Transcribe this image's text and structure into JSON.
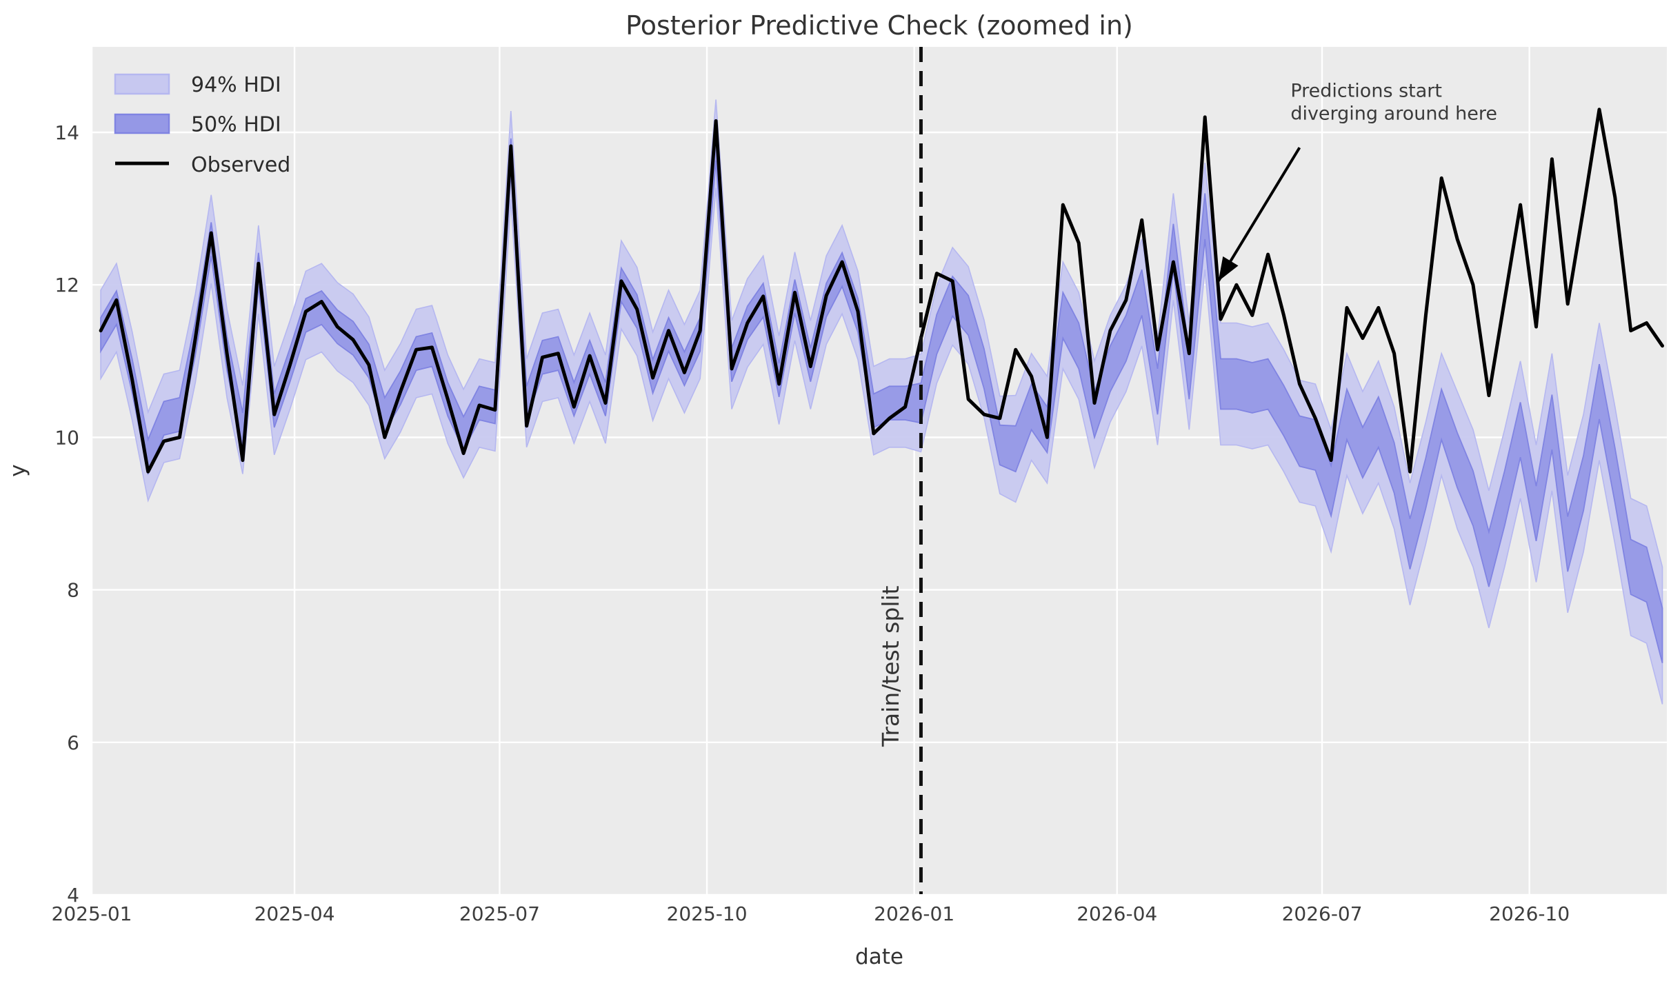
{
  "chart_data": {
    "type": "line",
    "title": "Posterior Predictive Check (zoomed in)",
    "xlabel": "date",
    "ylabel": "y",
    "grid": true,
    "legend_position": "upper left",
    "plot_bg": "#ebebeb",
    "figure_bg": "#ffffff",
    "colors": {
      "hdi94_fill": "#c7c8f0",
      "hdi94_edge": "#b5b7f0",
      "hdi50_fill": "#9598e6",
      "hdi50_edge": "#8084e2",
      "observed": "#000000",
      "split_line": "#111111",
      "grid_line": "#ffffff",
      "title_text": "#333333",
      "tick_text": "#3d3d3d",
      "annotation_text": "#3a3a3a"
    },
    "legend": [
      {
        "label": "94% HDI",
        "swatch": "patch-light"
      },
      {
        "label": "50% HDI",
        "swatch": "patch-dark"
      },
      {
        "label": "Observed",
        "swatch": "line-black"
      }
    ],
    "xlim": [
      "2025-01-01",
      "2026-12-01"
    ],
    "ylim": [
      4.0,
      15.15
    ],
    "x_ticks": [
      {
        "date": "2025-01-01",
        "label": "2025-01"
      },
      {
        "date": "2025-04-01",
        "label": "2025-04"
      },
      {
        "date": "2025-07-01",
        "label": "2025-07"
      },
      {
        "date": "2025-10-01",
        "label": "2025-10"
      },
      {
        "date": "2026-01-01",
        "label": "2026-01"
      },
      {
        "date": "2026-04-01",
        "label": "2026-04"
      },
      {
        "date": "2026-07-01",
        "label": "2026-07"
      },
      {
        "date": "2026-10-01",
        "label": "2026-10"
      }
    ],
    "y_ticks": [
      4,
      6,
      8,
      10,
      12,
      14
    ],
    "split": {
      "date": "2026-01-04",
      "label": "Train/test split",
      "label_pos": {
        "date": "2025-12-25",
        "value": 7.0
      }
    },
    "annotation": {
      "line1": "Predictions start",
      "line2": "diverging around here",
      "text_pos": {
        "date": "2026-06-17",
        "value": 14.7
      },
      "arrow_tail": {
        "date": "2026-06-21",
        "value": 13.8
      },
      "arrow_tip": {
        "date": "2026-05-16",
        "value": 12.05
      }
    },
    "dates": [
      "2025-01-05",
      "2025-01-12",
      "2025-01-19",
      "2025-01-26",
      "2025-02-02",
      "2025-02-09",
      "2025-02-16",
      "2025-02-23",
      "2025-03-02",
      "2025-03-09",
      "2025-03-16",
      "2025-03-23",
      "2025-03-30",
      "2025-04-06",
      "2025-04-13",
      "2025-04-20",
      "2025-04-27",
      "2025-05-04",
      "2025-05-11",
      "2025-05-18",
      "2025-05-25",
      "2025-06-01",
      "2025-06-08",
      "2025-06-15",
      "2025-06-22",
      "2025-06-29",
      "2025-07-06",
      "2025-07-13",
      "2025-07-20",
      "2025-07-27",
      "2025-08-03",
      "2025-08-10",
      "2025-08-17",
      "2025-08-24",
      "2025-08-31",
      "2025-09-07",
      "2025-09-14",
      "2025-09-21",
      "2025-09-28",
      "2025-10-05",
      "2025-10-12",
      "2025-10-19",
      "2025-10-26",
      "2025-11-02",
      "2025-11-09",
      "2025-11-16",
      "2025-11-23",
      "2025-11-30",
      "2025-12-07",
      "2025-12-14",
      "2025-12-21",
      "2025-12-28",
      "2026-01-04",
      "2026-01-11",
      "2026-01-18",
      "2026-01-25",
      "2026-02-01",
      "2026-02-08",
      "2026-02-15",
      "2026-02-22",
      "2026-03-01",
      "2026-03-08",
      "2026-03-15",
      "2026-03-22",
      "2026-03-29",
      "2026-04-05",
      "2026-04-12",
      "2026-04-19",
      "2026-04-26",
      "2026-05-03",
      "2026-05-10",
      "2026-05-17",
      "2026-05-24",
      "2026-05-31",
      "2026-06-07",
      "2026-06-14",
      "2026-06-21",
      "2026-06-28",
      "2026-07-05",
      "2026-07-12",
      "2026-07-19",
      "2026-07-26",
      "2026-08-02",
      "2026-08-09",
      "2026-08-16",
      "2026-08-23",
      "2026-08-30",
      "2026-09-06",
      "2026-09-13",
      "2026-09-20",
      "2026-09-27",
      "2026-10-04",
      "2026-10-11",
      "2026-10-18",
      "2026-10-25",
      "2026-11-01",
      "2026-11-08",
      "2026-11-15",
      "2026-11-22",
      "2026-11-29"
    ],
    "series": [
      {
        "name": "Observed",
        "values": [
          11.4,
          11.8,
          10.75,
          9.55,
          9.95,
          10.0,
          11.3,
          12.68,
          11.1,
          9.7,
          12.28,
          10.3,
          10.95,
          11.65,
          11.78,
          11.45,
          11.28,
          10.95,
          10.0,
          10.6,
          11.15,
          11.18,
          10.5,
          9.79,
          10.42,
          10.36,
          13.82,
          10.15,
          11.05,
          11.1,
          10.4,
          11.07,
          10.45,
          12.05,
          11.68,
          10.78,
          11.4,
          10.85,
          11.4,
          14.15,
          10.9,
          11.5,
          11.85,
          10.7,
          11.9,
          10.93,
          11.86,
          12.3,
          11.65,
          10.05,
          10.25,
          10.4,
          11.3,
          12.15,
          12.05,
          10.5,
          10.3,
          10.25,
          11.15,
          10.8,
          10.0,
          13.05,
          12.55,
          10.45,
          11.4,
          11.8,
          12.85,
          11.15,
          12.3,
          11.1,
          14.2,
          11.55,
          12.0,
          11.6,
          12.4,
          11.6,
          10.7,
          10.25,
          9.7,
          11.7,
          11.3,
          11.7,
          11.1,
          9.55,
          11.6,
          13.4,
          12.6,
          12.0,
          10.55,
          11.8,
          13.05,
          11.45,
          13.65,
          11.75,
          13.0,
          14.3,
          13.15,
          11.4,
          11.5,
          11.2
        ]
      },
      {
        "name": "50% HDI lower",
        "values": [
          11.13,
          11.48,
          10.58,
          9.53,
          10.03,
          10.08,
          11.08,
          12.38,
          10.88,
          9.88,
          11.98,
          10.13,
          10.73,
          11.38,
          11.48,
          11.23,
          11.08,
          10.78,
          10.08,
          10.43,
          10.88,
          10.93,
          10.28,
          9.83,
          10.23,
          10.18,
          13.48,
          10.23,
          10.83,
          10.88,
          10.28,
          10.83,
          10.28,
          11.78,
          11.43,
          10.58,
          11.13,
          10.68,
          11.13,
          13.63,
          10.73,
          11.28,
          11.58,
          10.53,
          11.63,
          10.73,
          11.58,
          11.98,
          11.38,
          10.13,
          10.23,
          10.23,
          10.19,
          11.09,
          11.59,
          11.34,
          10.64,
          9.64,
          9.55,
          10.1,
          9.8,
          11.3,
          10.9,
          10.0,
          10.6,
          11.0,
          11.6,
          10.3,
          12.2,
          10.5,
          12.6,
          10.37,
          10.37,
          10.32,
          10.37,
          10.02,
          9.62,
          9.57,
          8.97,
          9.97,
          9.47,
          9.87,
          9.27,
          8.27,
          9.07,
          9.97,
          9.34,
          8.84,
          8.04,
          8.84,
          9.74,
          8.64,
          9.84,
          8.24,
          9.04,
          10.24,
          9.14,
          7.94,
          7.84,
          7.04
        ]
      },
      {
        "name": "50% HDI upper",
        "values": [
          11.57,
          11.92,
          11.02,
          9.97,
          10.47,
          10.52,
          11.52,
          12.82,
          11.32,
          10.32,
          12.42,
          10.57,
          11.17,
          11.82,
          11.92,
          11.67,
          11.52,
          11.22,
          10.52,
          10.87,
          11.32,
          11.37,
          10.72,
          10.27,
          10.67,
          10.62,
          13.92,
          10.67,
          11.27,
          11.32,
          10.72,
          11.27,
          10.72,
          12.22,
          11.87,
          11.02,
          11.57,
          11.12,
          11.57,
          14.07,
          11.17,
          11.72,
          12.02,
          10.97,
          12.07,
          11.17,
          12.02,
          12.42,
          11.82,
          10.57,
          10.67,
          10.67,
          10.71,
          11.61,
          12.11,
          11.86,
          11.16,
          10.16,
          10.15,
          10.7,
          10.4,
          11.9,
          11.5,
          10.6,
          11.2,
          11.6,
          12.2,
          10.9,
          12.8,
          11.1,
          13.2,
          11.03,
          11.03,
          10.98,
          11.03,
          10.68,
          10.28,
          10.23,
          9.63,
          10.63,
          10.13,
          10.53,
          9.93,
          8.93,
          9.73,
          10.63,
          10.06,
          9.56,
          8.76,
          9.56,
          10.46,
          9.36,
          10.56,
          8.96,
          9.76,
          10.96,
          9.86,
          8.66,
          8.56,
          7.76
        ]
      },
      {
        "name": "94% HDI lower",
        "values": [
          10.77,
          11.12,
          10.22,
          9.17,
          9.67,
          9.72,
          10.72,
          12.02,
          10.52,
          9.52,
          11.62,
          9.77,
          10.37,
          11.02,
          11.12,
          10.87,
          10.72,
          10.42,
          9.72,
          10.07,
          10.52,
          10.57,
          9.92,
          9.47,
          9.87,
          9.82,
          13.12,
          9.87,
          10.47,
          10.52,
          9.92,
          10.47,
          9.92,
          11.42,
          11.07,
          10.22,
          10.77,
          10.32,
          10.77,
          13.27,
          10.37,
          10.92,
          11.22,
          10.17,
          11.27,
          10.37,
          11.22,
          11.62,
          11.02,
          9.77,
          9.87,
          9.87,
          9.81,
          10.71,
          11.21,
          10.96,
          10.26,
          9.26,
          9.15,
          9.7,
          9.4,
          10.9,
          10.5,
          9.6,
          10.2,
          10.6,
          11.2,
          9.9,
          11.8,
          10.1,
          12.2,
          9.9,
          9.9,
          9.85,
          9.9,
          9.55,
          9.15,
          9.1,
          8.5,
          9.5,
          9.0,
          9.4,
          8.8,
          7.8,
          8.6,
          9.5,
          8.8,
          8.3,
          7.5,
          8.3,
          9.2,
          8.1,
          9.3,
          7.7,
          8.5,
          9.7,
          8.6,
          7.4,
          7.3,
          6.5
        ]
      },
      {
        "name": "94% HDI upper",
        "values": [
          11.93,
          12.28,
          11.38,
          10.33,
          10.83,
          10.88,
          11.88,
          13.18,
          11.68,
          10.68,
          12.78,
          10.93,
          11.53,
          12.18,
          12.28,
          12.03,
          11.88,
          11.58,
          10.88,
          11.23,
          11.68,
          11.73,
          11.08,
          10.63,
          11.03,
          10.98,
          14.28,
          11.03,
          11.63,
          11.68,
          11.08,
          11.63,
          11.08,
          12.58,
          12.23,
          11.38,
          11.93,
          11.48,
          11.93,
          14.43,
          11.53,
          12.08,
          12.38,
          11.33,
          12.43,
          11.53,
          12.38,
          12.78,
          12.18,
          10.93,
          11.03,
          11.03,
          11.09,
          11.99,
          12.49,
          12.24,
          11.54,
          10.54,
          10.55,
          11.1,
          10.8,
          12.3,
          11.9,
          11.0,
          11.6,
          12.0,
          12.6,
          11.3,
          13.2,
          11.5,
          13.6,
          11.5,
          11.5,
          11.45,
          11.5,
          11.15,
          10.75,
          10.7,
          10.1,
          11.1,
          10.6,
          11.0,
          10.4,
          9.4,
          10.2,
          11.1,
          10.6,
          10.1,
          9.3,
          10.1,
          11.0,
          9.9,
          11.1,
          9.5,
          10.3,
          11.5,
          10.4,
          9.2,
          9.1,
          8.3
        ]
      }
    ]
  }
}
